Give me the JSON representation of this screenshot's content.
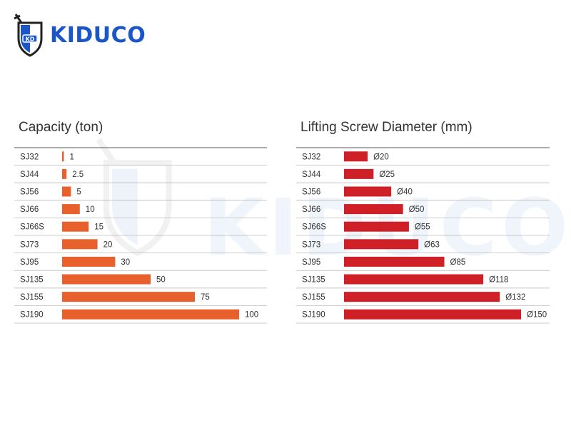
{
  "brand": {
    "name": "KIDUCO",
    "watermark": "KIDUCO",
    "colors": {
      "primary": "#1a56c8",
      "dark": "#222222"
    }
  },
  "chart_data": [
    {
      "type": "bar",
      "title": "Capacity (ton)",
      "color": "#e8602c",
      "categories": [
        "SJ32",
        "SJ44",
        "SJ56",
        "SJ66",
        "SJ66S",
        "SJ73",
        "SJ95",
        "SJ135",
        "SJ155",
        "SJ190"
      ],
      "values": [
        1,
        2.5,
        5,
        10,
        15,
        20,
        30,
        50,
        75,
        100
      ],
      "labels": [
        "1",
        "2.5",
        "5",
        "10",
        "15",
        "20",
        "30",
        "50",
        "75",
        "100"
      ]
    },
    {
      "type": "bar",
      "title": "Lifting Screw  Diameter (mm)",
      "color": "#cf2027",
      "categories": [
        "SJ32",
        "SJ44",
        "SJ56",
        "SJ66",
        "SJ66S",
        "SJ73",
        "SJ95",
        "SJ135",
        "SJ155",
        "SJ190"
      ],
      "values": [
        20,
        25,
        40,
        50,
        55,
        63,
        85,
        118,
        132,
        150
      ],
      "labels": [
        "Ø20",
        "Ø25",
        "Ø40",
        "Ø50",
        "Ø55",
        "Ø63",
        "Ø85",
        "Ø118",
        "Ø132",
        "Ø150"
      ]
    }
  ]
}
